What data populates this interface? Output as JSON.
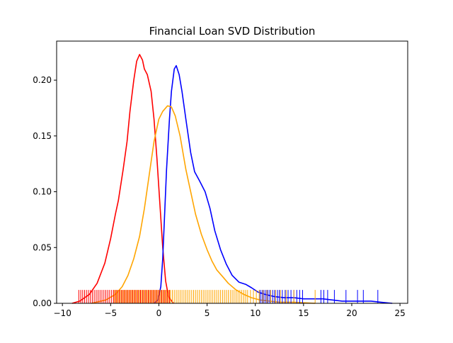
{
  "chart_data": {
    "type": "line",
    "title": "Financial Loan SVD Distribution",
    "xlabel": "",
    "ylabel": "",
    "xlim": [
      -10.6,
      25.8
    ],
    "ylim": [
      0,
      0.235
    ],
    "xticks": [
      -10,
      -5,
      0,
      5,
      10,
      15,
      20,
      25
    ],
    "xtick_labels": [
      "−10",
      "−5",
      "0",
      "5",
      "10",
      "15",
      "20",
      "25"
    ],
    "yticks": [
      0,
      0.05,
      0.1,
      0.15,
      0.2
    ],
    "ytick_labels": [
      "0.00",
      "0.05",
      "0.10",
      "0.15",
      "0.20"
    ],
    "grid": false,
    "legend": "none",
    "series": [
      {
        "color": "#ff0000",
        "points": [
          [
            -9,
            0
          ],
          [
            -8.2,
            0.002
          ],
          [
            -7.2,
            0.008
          ],
          [
            -6.4,
            0.018
          ],
          [
            -5.6,
            0.036
          ],
          [
            -5,
            0.058
          ],
          [
            -4.5,
            0.08
          ],
          [
            -4.2,
            0.092
          ],
          [
            -3.7,
            0.12
          ],
          [
            -3.3,
            0.145
          ],
          [
            -3,
            0.172
          ],
          [
            -2.6,
            0.2
          ],
          [
            -2.3,
            0.217
          ],
          [
            -2,
            0.223
          ],
          [
            -1.7,
            0.218
          ],
          [
            -1.5,
            0.21
          ],
          [
            -1.2,
            0.205
          ],
          [
            -0.8,
            0.19
          ],
          [
            -0.5,
            0.165
          ],
          [
            -0.2,
            0.13
          ],
          [
            0.1,
            0.09
          ],
          [
            0.4,
            0.05
          ],
          [
            0.7,
            0.02
          ],
          [
            1,
            0.006
          ],
          [
            1.5,
            0
          ]
        ]
      },
      {
        "color": "#0000ff",
        "points": [
          [
            -0.5,
            0
          ],
          [
            -0.1,
            0.003
          ],
          [
            0.2,
            0.015
          ],
          [
            0.4,
            0.04
          ],
          [
            0.6,
            0.08
          ],
          [
            0.8,
            0.12
          ],
          [
            1.1,
            0.165
          ],
          [
            1.3,
            0.19
          ],
          [
            1.6,
            0.21
          ],
          [
            1.8,
            0.213
          ],
          [
            2.1,
            0.205
          ],
          [
            2.4,
            0.19
          ],
          [
            2.8,
            0.165
          ],
          [
            3.3,
            0.135
          ],
          [
            3.7,
            0.118
          ],
          [
            4.2,
            0.11
          ],
          [
            4.8,
            0.1
          ],
          [
            5.3,
            0.085
          ],
          [
            5.8,
            0.065
          ],
          [
            6.4,
            0.048
          ],
          [
            7,
            0.035
          ],
          [
            7.6,
            0.025
          ],
          [
            8.3,
            0.019
          ],
          [
            9,
            0.017
          ],
          [
            9.6,
            0.014
          ],
          [
            10.3,
            0.01
          ],
          [
            11,
            0.008
          ],
          [
            12,
            0.006
          ],
          [
            13,
            0.005
          ],
          [
            14,
            0.005
          ],
          [
            15,
            0.004
          ],
          [
            16,
            0.004
          ],
          [
            17,
            0.004
          ],
          [
            18,
            0.003
          ],
          [
            19,
            0.002
          ],
          [
            20,
            0.002
          ],
          [
            21,
            0.002
          ],
          [
            22,
            0.002
          ],
          [
            23,
            0.001
          ],
          [
            24.2,
            0
          ]
        ]
      },
      {
        "color": "#ffa500",
        "points": [
          [
            -7,
            0
          ],
          [
            -5.5,
            0.003
          ],
          [
            -4.5,
            0.008
          ],
          [
            -3.8,
            0.015
          ],
          [
            -3.2,
            0.025
          ],
          [
            -2.6,
            0.04
          ],
          [
            -2,
            0.06
          ],
          [
            -1.5,
            0.085
          ],
          [
            -1,
            0.115
          ],
          [
            -0.5,
            0.145
          ],
          [
            0,
            0.165
          ],
          [
            0.4,
            0.172
          ],
          [
            0.9,
            0.177
          ],
          [
            1.3,
            0.176
          ],
          [
            1.7,
            0.168
          ],
          [
            2.2,
            0.15
          ],
          [
            2.8,
            0.12
          ],
          [
            3.3,
            0.1
          ],
          [
            3.8,
            0.08
          ],
          [
            4.4,
            0.062
          ],
          [
            5,
            0.048
          ],
          [
            5.5,
            0.038
          ],
          [
            6,
            0.03
          ],
          [
            6.6,
            0.024
          ],
          [
            7.2,
            0.018
          ],
          [
            8,
            0.012
          ],
          [
            8.8,
            0.008
          ],
          [
            9.6,
            0.005
          ],
          [
            10.5,
            0.003
          ],
          [
            11.5,
            0.002
          ],
          [
            12.5,
            0.001
          ],
          [
            14,
            0.001
          ],
          [
            16.2,
            0
          ]
        ]
      }
    ],
    "rug": {
      "height": 0.012,
      "red": [
        -8.3,
        -8.1,
        -7.9,
        -7.7,
        -7.5,
        -7.3,
        -7.1,
        -6.9,
        -6.7,
        -6.5,
        -6.3,
        -6.1,
        -5.9,
        -5.7,
        -5.5,
        -5.3,
        -5.1,
        -4.9,
        -4.7,
        -4.5,
        -4.3,
        -4.1,
        -3.9,
        -3.7,
        -3.5,
        -3.3,
        -3.1,
        -2.9,
        -2.7,
        -2.5,
        -2.3,
        -2.1,
        -1.9,
        -1.7,
        -1.5,
        -1.3,
        -1.1,
        -0.9,
        -0.7,
        -0.5,
        -0.3,
        -0.1,
        0.1,
        0.3,
        0.5,
        0.7,
        0.9,
        1.1
      ],
      "blue": [
        10.5,
        10.7,
        10.9,
        11.1,
        11.3,
        11.5,
        11.8,
        12.0,
        12.3,
        12.5,
        12.8,
        13.1,
        13.4,
        13.7,
        14.0,
        14.3,
        14.6,
        14.9,
        16.8,
        17.1,
        17.5,
        18.2,
        19.4,
        20.6,
        21.2,
        22.7
      ],
      "orange": [
        -4.6,
        -4.4,
        -4.2,
        -4.0,
        -3.8,
        -3.6,
        -3.4,
        -3.2,
        -3.0,
        -2.8,
        -2.6,
        -2.4,
        -2.2,
        -2.0,
        -1.8,
        -1.6,
        -1.4,
        -1.2,
        -1.0,
        -0.8,
        -0.6,
        -0.4,
        -0.2,
        0.0,
        0.2,
        0.4,
        0.6,
        0.8,
        1.0,
        1.2,
        1.4,
        1.6,
        1.8,
        2.0,
        2.2,
        2.4,
        2.6,
        2.8,
        3.0,
        3.2,
        3.4,
        3.6,
        3.8,
        4.0,
        4.2,
        4.4,
        4.6,
        4.8,
        5.0,
        5.2,
        5.4,
        5.6,
        5.8,
        6.0,
        6.2,
        6.4,
        6.6,
        6.8,
        7.0,
        7.2,
        7.4,
        7.6,
        7.8,
        8.0,
        8.2,
        8.4,
        8.6,
        8.8,
        9.0,
        9.2,
        9.5,
        9.8,
        10.1,
        10.4,
        10.8,
        11.2,
        11.6,
        12.1,
        12.6,
        13.2,
        14.0,
        16.2
      ]
    }
  }
}
